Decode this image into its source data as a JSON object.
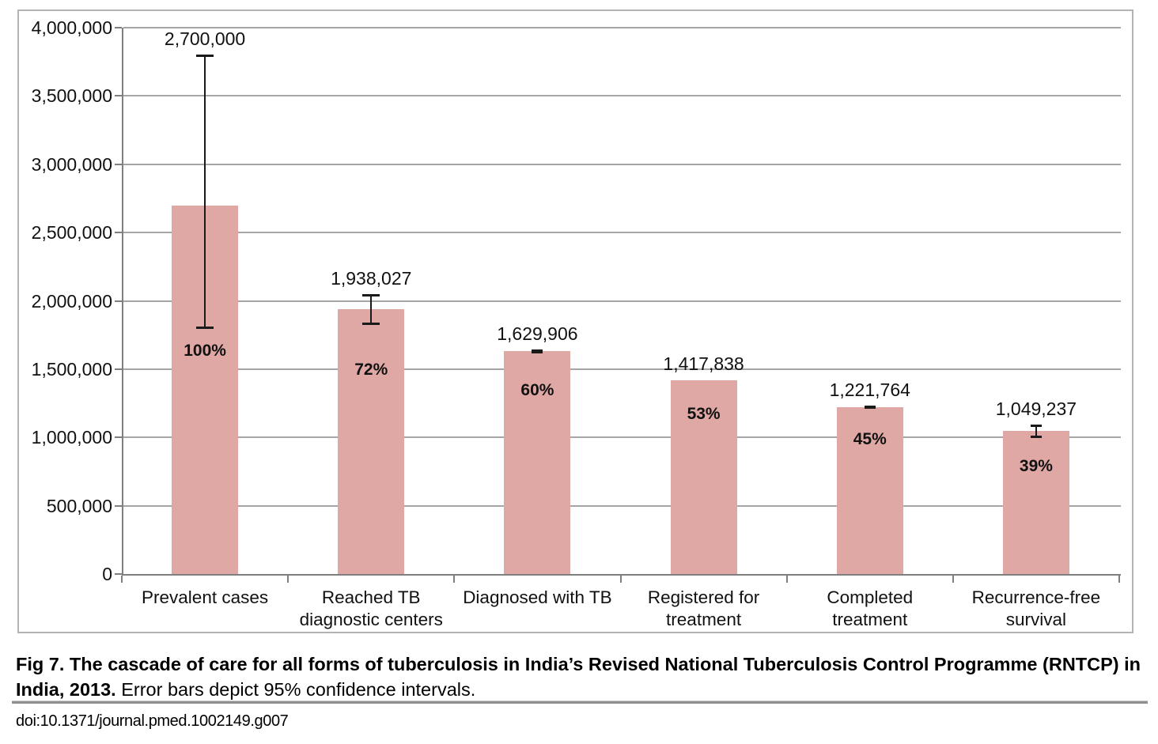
{
  "figure": {
    "caption_bold": "Fig 7. The cascade of care for all forms of tuberculosis in India’s Revised National Tuberculosis Control Programme (RNTCP) in India, 2013.",
    "caption_regular": " Error bars depict 95% confidence intervals.",
    "doi": "doi:10.1371/journal.pmed.1002149.g007"
  },
  "chart_data": {
    "type": "bar",
    "title": "",
    "xlabel": "",
    "ylabel": "",
    "categories": [
      "Prevalent cases",
      "Reached TB diagnostic centers",
      "Diagnosed with TB",
      "Registered for treatment",
      "Completed treatment",
      "Recurrence-free survival"
    ],
    "values": [
      2700000,
      1938027,
      1629906,
      1417838,
      1221764,
      1049237
    ],
    "value_labels": [
      "2,700,000",
      "1,938,027",
      "1,629,906",
      "1,417,838",
      "1,221,764",
      "1,049,237"
    ],
    "pct_labels": [
      "100%",
      "72%",
      "60%",
      "53%",
      "45%",
      "39%"
    ],
    "error_bars": [
      {
        "low": 1800000,
        "high": 3800000
      },
      {
        "low": 1830000,
        "high": 2045000
      },
      {
        "low": 1622000,
        "high": 1638000
      },
      null,
      {
        "low": 1214000,
        "high": 1230000
      },
      {
        "low": 1000000,
        "high": 1088000
      }
    ],
    "ylim": [
      0,
      4000000
    ],
    "ytick_interval": 500000,
    "ytick_labels": [
      "0",
      "500,000",
      "1,000,000",
      "1,500,000",
      "2,000,000",
      "2,500,000",
      "3,000,000",
      "3,500,000",
      "4,000,000"
    ],
    "grid": true,
    "legend": false,
    "bar_color": "#dfa8a4",
    "error_bar_color": "#1a1a1a",
    "gridline_color": "#a6a6a6",
    "axis_color": "#7f7f7f",
    "frame_color": "#b3b3b3"
  }
}
